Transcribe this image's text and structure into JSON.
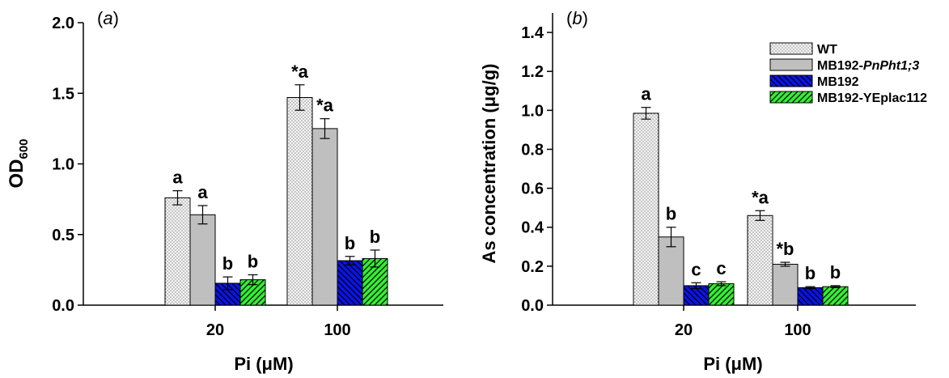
{
  "chart_data": [
    {
      "type": "bar",
      "panel_label_parts": [
        "(",
        "a",
        ")"
      ],
      "xlabel": "Pi (μM)",
      "ylabel_main": "OD",
      "ylabel_sub": "600",
      "categories": [
        "20",
        "100"
      ],
      "ylim": [
        0,
        2.0
      ],
      "yticks": [
        0.0,
        0.5,
        1.0,
        1.5,
        2.0
      ],
      "ytick_labels": [
        "0.0",
        "0.5",
        "1.0",
        "1.5",
        "2.0"
      ],
      "series": [
        {
          "values": [
            0.76,
            1.47
          ],
          "errors": [
            0.05,
            0.09
          ],
          "labels": [
            "a",
            "*a"
          ]
        },
        {
          "values": [
            0.64,
            1.25
          ],
          "errors": [
            0.065,
            0.07
          ],
          "labels": [
            "a",
            "*a"
          ]
        },
        {
          "values": [
            0.155,
            0.315
          ],
          "errors": [
            0.045,
            0.03
          ],
          "labels": [
            "b",
            "b"
          ]
        },
        {
          "values": [
            0.18,
            0.33
          ],
          "errors": [
            0.035,
            0.06
          ],
          "labels": [
            "b",
            "b"
          ]
        }
      ]
    },
    {
      "type": "bar",
      "panel_label_parts": [
        "(",
        "b",
        ")"
      ],
      "xlabel": "Pi (μM)",
      "ylabel": "As concentration (μg/g)",
      "categories": [
        "20",
        "100"
      ],
      "ylim": [
        0,
        1.5
      ],
      "yticks": [
        0.0,
        0.2,
        0.4,
        0.6,
        0.8,
        1.0,
        1.2,
        1.4
      ],
      "ytick_labels": [
        "0.0",
        "0.2",
        "0.4",
        "0.6",
        "0.8",
        "1.0",
        "1.2",
        "1.4"
      ],
      "series": [
        {
          "values": [
            0.985,
            0.46
          ],
          "errors": [
            0.03,
            0.025
          ],
          "labels": [
            "a",
            "*a"
          ]
        },
        {
          "values": [
            0.35,
            0.21
          ],
          "errors": [
            0.05,
            0.01
          ],
          "labels": [
            "b",
            "*b"
          ]
        },
        {
          "values": [
            0.1,
            0.09
          ],
          "errors": [
            0.015,
            0.005
          ],
          "labels": [
            "c",
            "b"
          ]
        },
        {
          "values": [
            0.11,
            0.095
          ],
          "errors": [
            0.01,
            0.005
          ],
          "labels": [
            "c",
            "b"
          ]
        }
      ],
      "legend": {
        "placement": "top-right",
        "entries": [
          {
            "parts": [
              "WT"
            ],
            "italic": [
              false
            ]
          },
          {
            "parts": [
              "MB192-",
              "PnPht1;3"
            ],
            "italic": [
              false,
              true
            ]
          },
          {
            "parts": [
              "MB192"
            ],
            "italic": [
              false
            ]
          },
          {
            "parts": [
              "MB192-YEplac112"
            ],
            "italic": [
              false
            ]
          }
        ]
      }
    }
  ],
  "colors": {
    "wt_fill": "#f2f2f2",
    "pht_fill": "#bfbfbf",
    "mb192_fill": "#0a14e6",
    "yeplac_fill": "#33ee33",
    "axis": "#000000"
  }
}
